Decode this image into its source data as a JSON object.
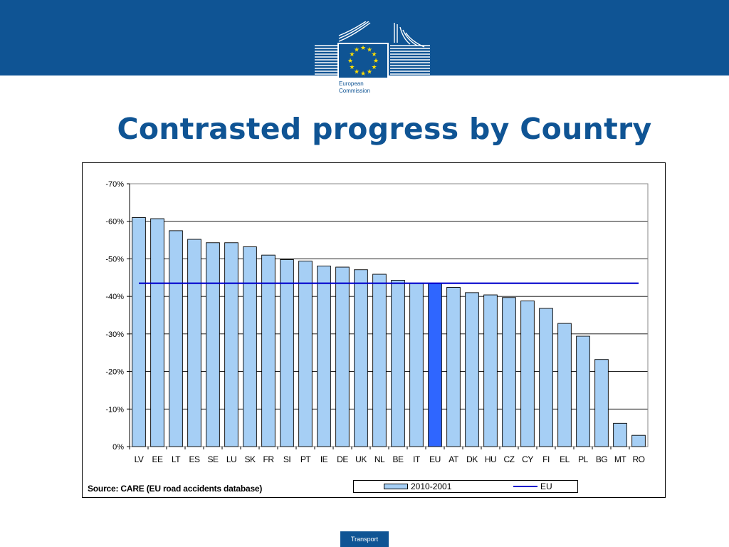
{
  "logo": {
    "line1": "European",
    "line2": "Commission"
  },
  "slide": {
    "title": "Contrasted progress by Country"
  },
  "footer": {
    "label": "Transport"
  },
  "source_note": "Source: CARE (EU road accidents database)",
  "colors": {
    "brand": "#0f5494",
    "bar": "#a6cff5",
    "bar_highlight": "#2f66ff",
    "eu_line": "#0000cc",
    "star": "#ffde00"
  },
  "chart_data": {
    "type": "bar",
    "title": "",
    "xlabel": "",
    "ylabel": "",
    "categories": [
      "LV",
      "EE",
      "LT",
      "ES",
      "SE",
      "LU",
      "SK",
      "FR",
      "SI",
      "PT",
      "IE",
      "DE",
      "UK",
      "NL",
      "BE",
      "IT",
      "EU",
      "AT",
      "DK",
      "HU",
      "CZ",
      "CY",
      "FI",
      "EL",
      "PL",
      "BG",
      "MT",
      "RO"
    ],
    "series": [
      {
        "name": "2010-2001",
        "values": [
          -61,
          -60.7,
          -57.5,
          -55.2,
          -54.3,
          -54.3,
          -53.2,
          -51,
          -49.8,
          -49.4,
          -48.1,
          -47.8,
          -47.1,
          -45.9,
          -44.3,
          -43.5,
          -43.5,
          -42.4,
          -41,
          -40.4,
          -39.7,
          -38.8,
          -36.8,
          -32.8,
          -29.4,
          -23.2,
          -6.2,
          -3
        ]
      },
      {
        "name": "EU",
        "type": "line",
        "value": -43.5
      }
    ],
    "highlight_category": "EU",
    "ylim": [
      0,
      -70
    ],
    "yticks": [
      0,
      -10,
      -20,
      -30,
      -40,
      -50,
      -60,
      -70
    ],
    "ytick_labels": [
      "0%",
      "-10%",
      "-20%",
      "-30%",
      "-40%",
      "-50%",
      "-60%",
      "-70%"
    ],
    "grid": true,
    "legend": "bottom-center"
  }
}
